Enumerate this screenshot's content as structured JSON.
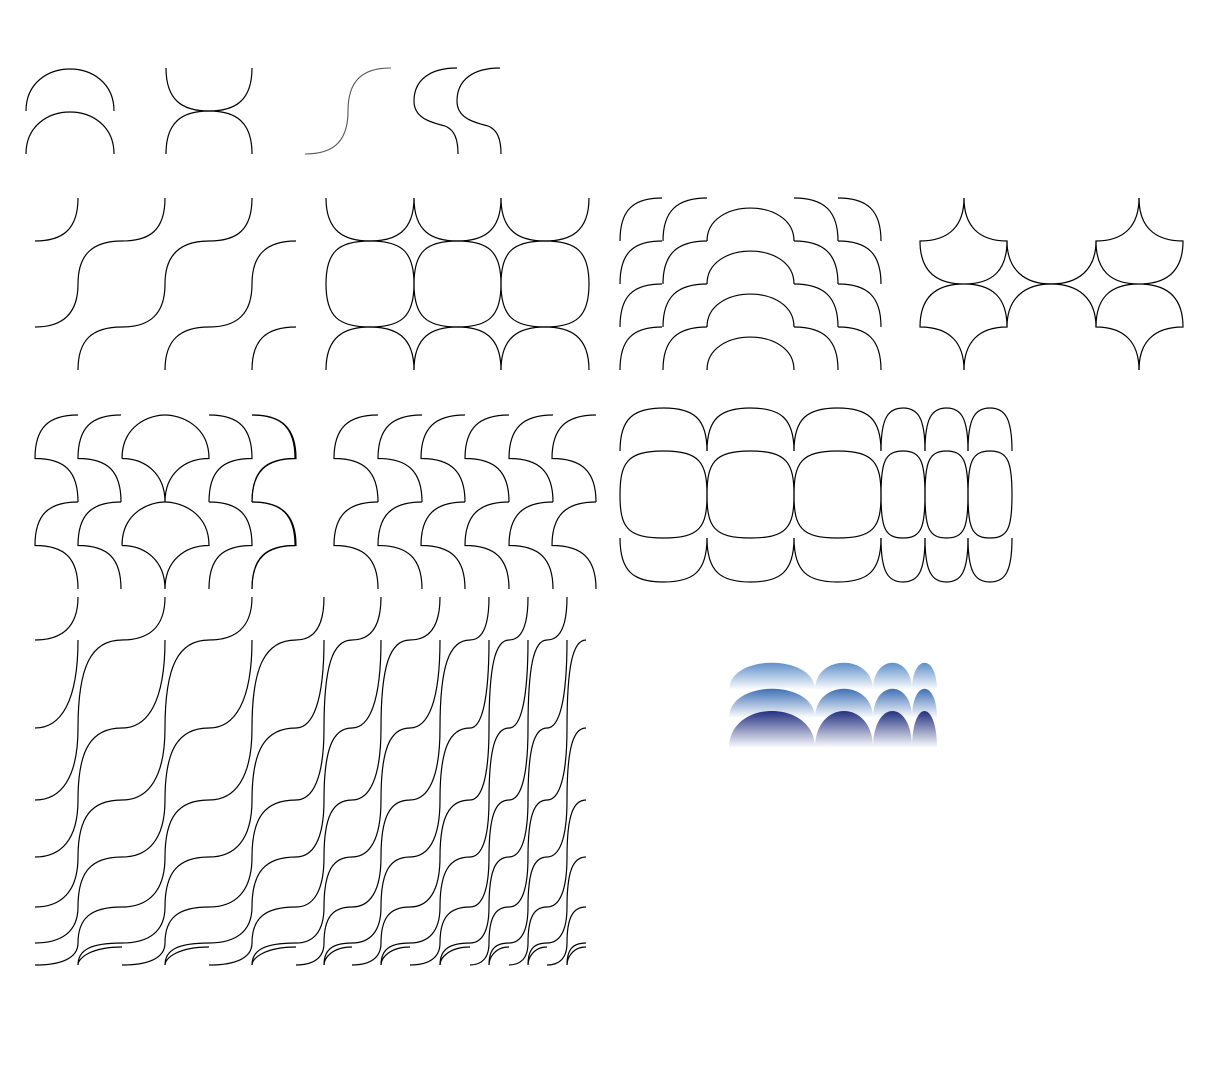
{
  "page": {
    "description_text": "",
    "background_color": "#ffffff"
  },
  "style": {
    "stroke_color": "#000000",
    "gradient_dark": "#2b3a8f",
    "gradient_mid": "#6fa0d4",
    "gradient_light": "#ffffff"
  },
  "motifs": [
    {
      "id": "arch-pair",
      "kind": "stacked-arches"
    },
    {
      "id": "x-cross",
      "kind": "crossed-arcs"
    },
    {
      "id": "s-curve",
      "kind": "single-s-curve"
    },
    {
      "id": "double-hook",
      "kind": "double-c-hook"
    },
    {
      "id": "wave-tile",
      "kind": "s-curve-repeat"
    },
    {
      "id": "circle-grid",
      "kind": "scalloped-circles"
    },
    {
      "id": "scale-fan",
      "kind": "nested-scallops"
    },
    {
      "id": "star-petal",
      "kind": "four-point-star"
    },
    {
      "id": "fan-shell",
      "kind": "shell-pattern"
    },
    {
      "id": "hook-rows",
      "kind": "c-hook-repeat"
    },
    {
      "id": "oval-grid",
      "kind": "compressed-circles"
    },
    {
      "id": "wave-field",
      "kind": "perspective-wave"
    },
    {
      "id": "gradient-scallops",
      "kind": "shaded-arches"
    }
  ]
}
